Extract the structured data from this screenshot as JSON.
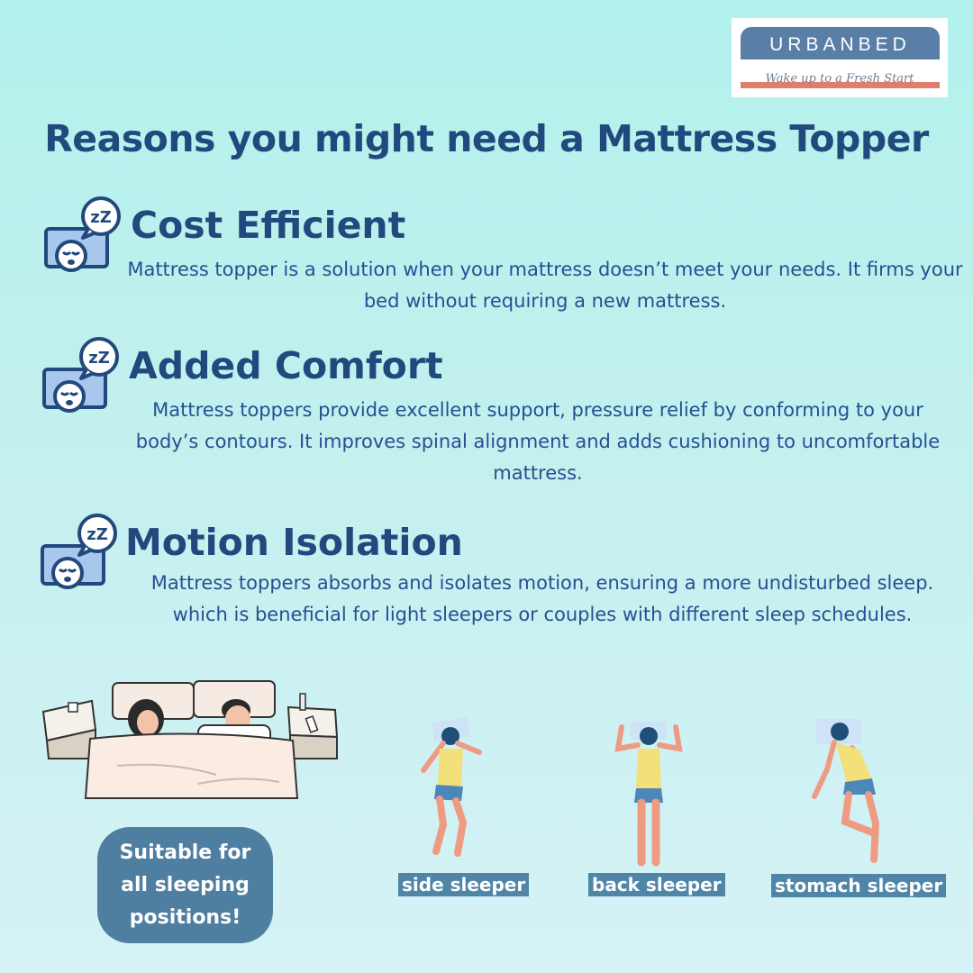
{
  "brand": {
    "name": "URBANBED",
    "tagline": "Wake up to a Fresh Start"
  },
  "title": "Reasons you might need a Mattress Topper",
  "sections": [
    {
      "heading": "Cost Efficient",
      "body": "Mattress topper is a solution when your mattress doesn’t meet your needs. It firms your bed without requiring a new mattress.",
      "icon": "sleeping-face-icon"
    },
    {
      "heading": "Added Comfort",
      "body": "Mattress toppers provide excellent support, pressure relief by conforming to your body’s contours. It improves spinal alignment and adds cushioning to uncomfortable mattress.",
      "icon": "sleeping-face-icon"
    },
    {
      "heading": "Motion Isolation",
      "body": "Mattress toppers absorbs and isolates motion, ensuring a more undisturbed sleep. which is beneficial for light sleepers or couples with different sleep schedules.",
      "icon": "sleeping-face-icon"
    }
  ],
  "badge": "Suitable for all sleeping positions!",
  "positions": [
    "side sleeper",
    "back sleeper",
    "stomach sleeper"
  ],
  "colors": {
    "heading": "#22497d",
    "body_text": "#245092",
    "badge": "#4e7ea0",
    "label": "#4f86a8",
    "brand_bar": "#5a7fa6",
    "brand_stripe": "#e07e6d"
  }
}
